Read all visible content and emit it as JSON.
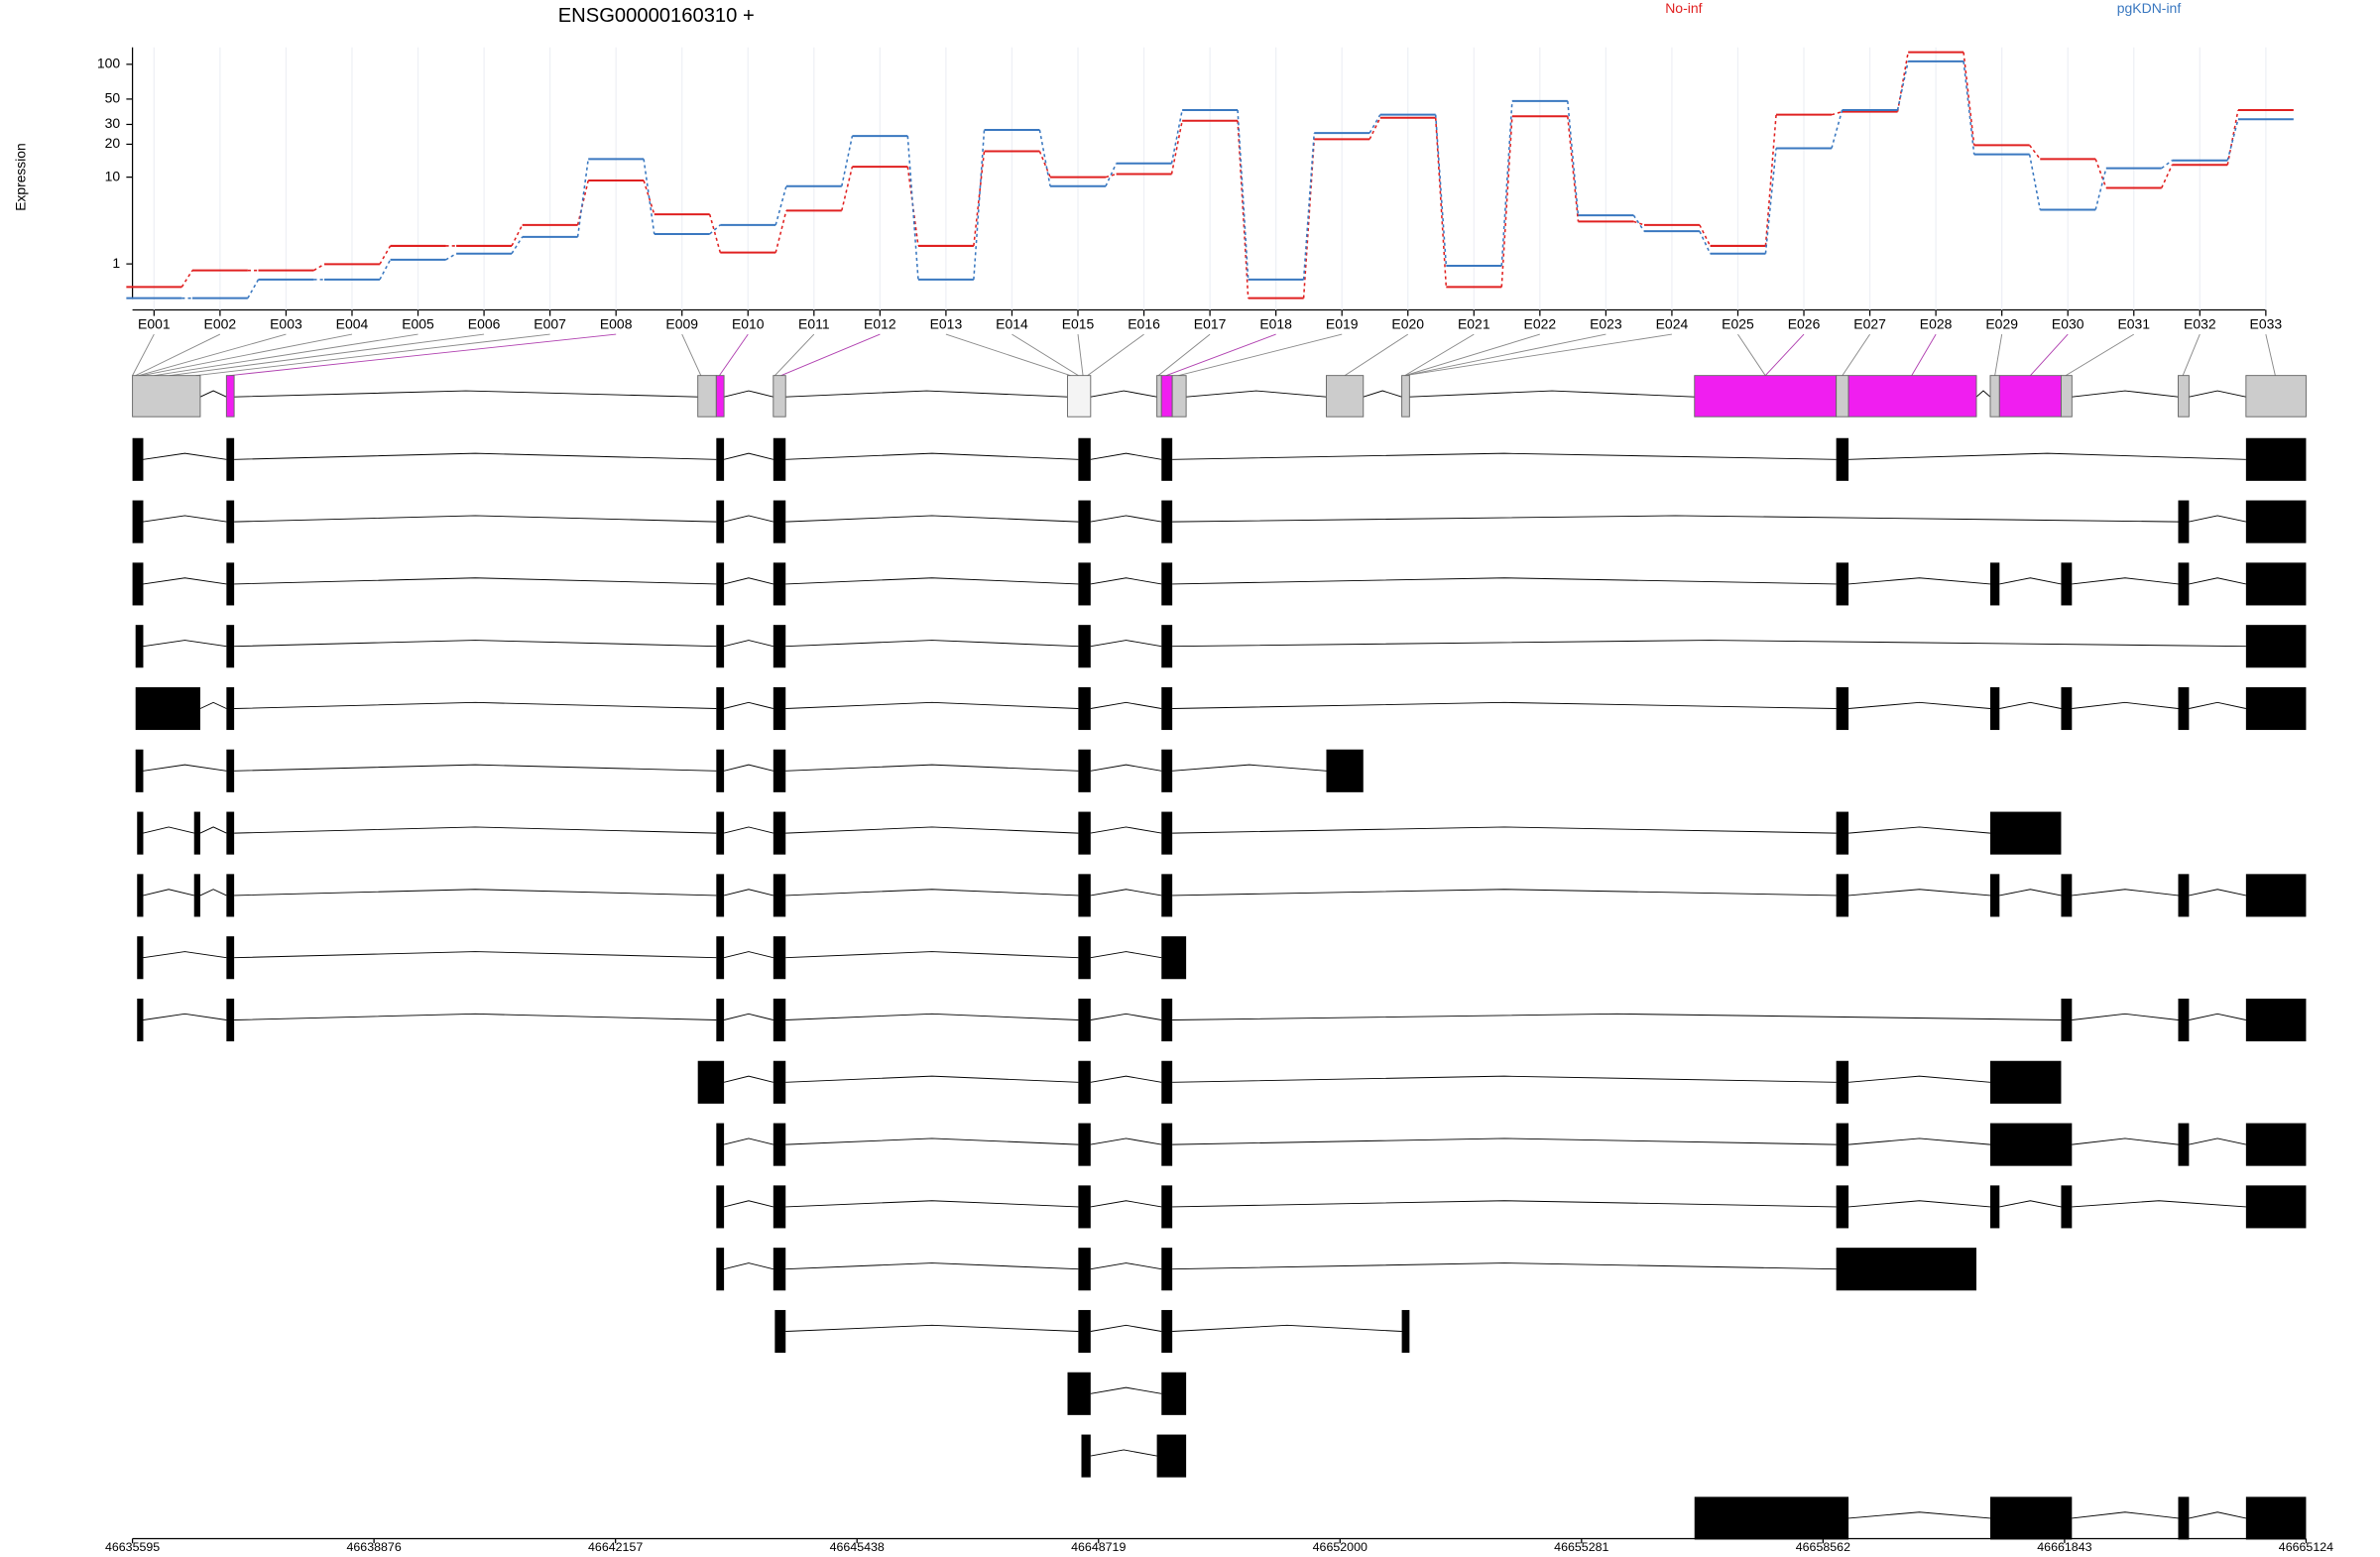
{
  "chart_data": {
    "type": "line",
    "title": "ENSG00000160310 +",
    "y_label": "Expression",
    "categories": [
      "E001",
      "E002",
      "E003",
      "E004",
      "E005",
      "E006",
      "E007",
      "E008",
      "E009",
      "E010",
      "E011",
      "E012",
      "E013",
      "E014",
      "E015",
      "E016",
      "E017",
      "E018",
      "E019",
      "E020",
      "E021",
      "E022",
      "E023",
      "E024",
      "E025",
      "E026",
      "E027",
      "E028",
      "E029",
      "E030",
      "E031",
      "E032",
      "E033"
    ],
    "series": [
      {
        "name": "No-inf",
        "color": "#e02020",
        "values": [
          0.27,
          0.76,
          0.76,
          0.99,
          1.85,
          1.85,
          3.3,
          9.3,
          4.3,
          1.5,
          4.7,
          12.5,
          1.85,
          17.3,
          10,
          10.7,
          32.3,
          0.02,
          22.2,
          34.3,
          0.27,
          35.4,
          3.6,
          3.3,
          1.85,
          36.5,
          38.8,
          127,
          19.6,
          14.7,
          7.9,
          13,
          40.1
        ]
      },
      {
        "name": "pgKDN-inf",
        "color": "#3a78c0",
        "values": [
          0.02,
          0.02,
          0.47,
          0.47,
          1.17,
          1.45,
          2.4,
          14.7,
          2.6,
          3.3,
          8.2,
          23.7,
          0.47,
          26.8,
          8.2,
          13.4,
          40.1,
          0.47,
          25.2,
          36.5,
          0.93,
          48.1,
          4.2,
          2.8,
          1.45,
          18.4,
          40.1,
          106,
          16.2,
          4.8,
          12.1,
          14.3,
          33.3
        ]
      }
    ],
    "ylim": [
      0,
      140
    ],
    "yticks": [
      1,
      10,
      20,
      30,
      50,
      100
    ],
    "log_scale": true,
    "log_pseudocount": 1,
    "grid": true,
    "genomic_axis": {
      "xlim": [
        46635595,
        46665124
      ],
      "xticks": [
        46635595,
        46638876,
        46642157,
        46645438,
        46648719,
        46652000,
        46655281,
        46658562,
        46661843,
        46665124
      ]
    }
  }
}
